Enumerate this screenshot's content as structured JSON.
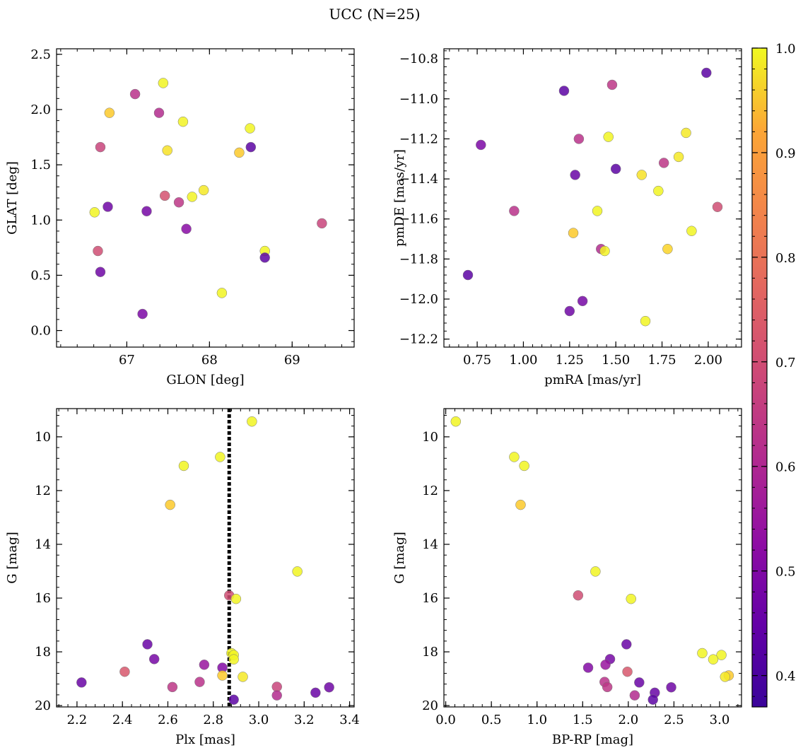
{
  "figure": {
    "title": "UCC (N=25)"
  },
  "colorbar": {
    "min": 0.37,
    "max": 1.0,
    "ticks": [
      0.4,
      0.5,
      0.6,
      0.7,
      0.8,
      0.9,
      1.0
    ],
    "tick_labels": [
      "0.4",
      "0.5",
      "0.6",
      "0.7",
      "0.8",
      "0.9",
      "1.0"
    ],
    "colormap": "plasma"
  },
  "chart_data": [
    {
      "type": "scatter",
      "id": "glon-glat",
      "title": "",
      "xlabel": "GLON [deg]",
      "ylabel": "GLAT [deg]",
      "xlim": [
        66.15,
        69.75
      ],
      "ylim": [
        -0.15,
        2.55
      ],
      "y_inverted": false,
      "xticks": [
        67,
        68,
        69
      ],
      "xtick_labels": [
        "67",
        "68",
        "69"
      ],
      "yticks": [
        0.0,
        0.5,
        1.0,
        1.5,
        2.0,
        2.5
      ],
      "ytick_labels": [
        "0.0",
        "0.5",
        "1.0",
        "1.5",
        "2.0",
        "2.5"
      ],
      "points": [
        {
          "x": 66.79,
          "y": 1.97,
          "c": 0.85
        },
        {
          "x": 67.44,
          "y": 2.24,
          "c": 0.98
        },
        {
          "x": 67.1,
          "y": 2.14,
          "c": 0.56
        },
        {
          "x": 67.39,
          "y": 1.97,
          "c": 0.55
        },
        {
          "x": 67.68,
          "y": 1.89,
          "c": 0.97
        },
        {
          "x": 66.68,
          "y": 1.66,
          "c": 0.6
        },
        {
          "x": 67.49,
          "y": 1.63,
          "c": 0.9
        },
        {
          "x": 68.49,
          "y": 1.83,
          "c": 0.98
        },
        {
          "x": 68.36,
          "y": 1.61,
          "c": 0.85
        },
        {
          "x": 68.5,
          "y": 1.66,
          "c": 0.4
        },
        {
          "x": 67.46,
          "y": 1.22,
          "c": 0.63
        },
        {
          "x": 67.63,
          "y": 1.16,
          "c": 0.57
        },
        {
          "x": 67.79,
          "y": 1.21,
          "c": 0.97
        },
        {
          "x": 67.93,
          "y": 1.27,
          "c": 0.92
        },
        {
          "x": 66.77,
          "y": 1.12,
          "c": 0.43
        },
        {
          "x": 67.24,
          "y": 1.08,
          "c": 0.44
        },
        {
          "x": 66.61,
          "y": 1.07,
          "c": 0.98
        },
        {
          "x": 67.72,
          "y": 0.92,
          "c": 0.47
        },
        {
          "x": 66.65,
          "y": 0.72,
          "c": 0.62
        },
        {
          "x": 66.68,
          "y": 0.53,
          "c": 0.43
        },
        {
          "x": 68.67,
          "y": 0.72,
          "c": 0.98
        },
        {
          "x": 68.67,
          "y": 0.66,
          "c": 0.4
        },
        {
          "x": 69.36,
          "y": 0.97,
          "c": 0.6
        },
        {
          "x": 68.15,
          "y": 0.34,
          "c": 0.98
        },
        {
          "x": 67.19,
          "y": 0.15,
          "c": 0.45
        }
      ]
    },
    {
      "type": "scatter",
      "id": "pmra-pmde",
      "title": "",
      "xlabel": "pmRA [mas/yr]",
      "ylabel": "pmDE [mas/yr]",
      "xlim": [
        0.57,
        2.18
      ],
      "ylim": [
        -12.24,
        -10.75
      ],
      "y_inverted": false,
      "xticks": [
        0.75,
        1.0,
        1.25,
        1.5,
        1.75,
        2.0
      ],
      "xtick_labels": [
        "0.75",
        "1.00",
        "1.25",
        "1.50",
        "1.75",
        "2.00"
      ],
      "yticks": [
        -12.2,
        -12.0,
        -11.8,
        -11.6,
        -11.4,
        -11.2,
        -11.0,
        -10.8
      ],
      "ytick_labels": [
        "−12.2",
        "−12.0",
        "−11.8",
        "−11.6",
        "−11.4",
        "−11.2",
        "−11.0",
        "−10.8"
      ],
      "points": [
        {
          "x": 1.99,
          "y": -10.87,
          "c": 0.4
        },
        {
          "x": 1.22,
          "y": -10.96,
          "c": 0.4
        },
        {
          "x": 1.48,
          "y": -10.93,
          "c": 0.57
        },
        {
          "x": 0.77,
          "y": -11.23,
          "c": 0.45
        },
        {
          "x": 1.3,
          "y": -11.2,
          "c": 0.56
        },
        {
          "x": 1.46,
          "y": -11.19,
          "c": 0.98
        },
        {
          "x": 1.88,
          "y": -11.17,
          "c": 0.92
        },
        {
          "x": 1.84,
          "y": -11.29,
          "c": 0.92
        },
        {
          "x": 1.76,
          "y": -11.32,
          "c": 0.57
        },
        {
          "x": 1.28,
          "y": -11.38,
          "c": 0.42
        },
        {
          "x": 1.5,
          "y": -11.35,
          "c": 0.4
        },
        {
          "x": 1.64,
          "y": -11.38,
          "c": 0.9
        },
        {
          "x": 1.73,
          "y": -11.46,
          "c": 0.98
        },
        {
          "x": 2.05,
          "y": -11.54,
          "c": 0.62
        },
        {
          "x": 0.95,
          "y": -11.56,
          "c": 0.56
        },
        {
          "x": 1.4,
          "y": -11.56,
          "c": 0.98
        },
        {
          "x": 1.91,
          "y": -11.66,
          "c": 0.98
        },
        {
          "x": 1.27,
          "y": -11.67,
          "c": 0.85
        },
        {
          "x": 1.78,
          "y": -11.75,
          "c": 0.87
        },
        {
          "x": 1.42,
          "y": -11.75,
          "c": 0.55
        },
        {
          "x": 1.44,
          "y": -11.76,
          "c": 0.97
        },
        {
          "x": 0.7,
          "y": -11.88,
          "c": 0.4
        },
        {
          "x": 1.32,
          "y": -12.01,
          "c": 0.44
        },
        {
          "x": 1.25,
          "y": -12.06,
          "c": 0.43
        },
        {
          "x": 1.66,
          "y": -12.11,
          "c": 0.98
        }
      ]
    },
    {
      "type": "scatter",
      "id": "plx-g",
      "title": "",
      "xlabel": "Plx [mas]",
      "ylabel": "G [mag]",
      "xlim": [
        2.11,
        3.42
      ],
      "ylim": [
        8.95,
        20.05
      ],
      "y_inverted": true,
      "xticks": [
        2.2,
        2.4,
        2.6,
        2.8,
        3.0,
        3.2,
        3.4
      ],
      "xtick_labels": [
        "2.2",
        "2.4",
        "2.6",
        "2.8",
        "3.0",
        "3.2",
        "3.4"
      ],
      "yticks": [
        10,
        12,
        14,
        16,
        18,
        20
      ],
      "ytick_labels": [
        "10",
        "12",
        "14",
        "16",
        "18",
        "20"
      ],
      "vline": {
        "x": 2.87,
        "style": "dotted"
      },
      "points": [
        {
          "x": 2.97,
          "y": 9.43,
          "c": 0.98
        },
        {
          "x": 2.83,
          "y": 10.75,
          "c": 0.98
        },
        {
          "x": 2.67,
          "y": 11.08,
          "c": 0.98
        },
        {
          "x": 2.61,
          "y": 12.53,
          "c": 0.85
        },
        {
          "x": 3.17,
          "y": 15.01,
          "c": 0.98
        },
        {
          "x": 2.87,
          "y": 15.9,
          "c": 0.62
        },
        {
          "x": 2.9,
          "y": 16.03,
          "c": 0.98
        },
        {
          "x": 2.51,
          "y": 17.72,
          "c": 0.42
        },
        {
          "x": 2.88,
          "y": 18.05,
          "c": 0.98
        },
        {
          "x": 2.89,
          "y": 18.12,
          "c": 0.98
        },
        {
          "x": 2.89,
          "y": 18.28,
          "c": 0.98
        },
        {
          "x": 2.54,
          "y": 18.27,
          "c": 0.44
        },
        {
          "x": 2.76,
          "y": 18.48,
          "c": 0.5
        },
        {
          "x": 2.84,
          "y": 18.59,
          "c": 0.46
        },
        {
          "x": 2.41,
          "y": 18.74,
          "c": 0.64
        },
        {
          "x": 2.84,
          "y": 18.88,
          "c": 0.85
        },
        {
          "x": 2.93,
          "y": 18.93,
          "c": 0.92
        },
        {
          "x": 2.22,
          "y": 19.14,
          "c": 0.42
        },
        {
          "x": 2.74,
          "y": 19.12,
          "c": 0.56
        },
        {
          "x": 2.62,
          "y": 19.31,
          "c": 0.57
        },
        {
          "x": 3.08,
          "y": 19.3,
          "c": 0.6
        },
        {
          "x": 3.31,
          "y": 19.32,
          "c": 0.43
        },
        {
          "x": 3.25,
          "y": 19.52,
          "c": 0.42
        },
        {
          "x": 3.08,
          "y": 19.62,
          "c": 0.55
        },
        {
          "x": 2.89,
          "y": 19.78,
          "c": 0.4
        }
      ]
    },
    {
      "type": "scatter",
      "id": "bprp-g",
      "title": "",
      "xlabel": "BP-RP [mag]",
      "ylabel": "G [mag]",
      "xlim": [
        -0.02,
        3.24
      ],
      "ylim": [
        8.95,
        20.05
      ],
      "y_inverted": true,
      "xticks": [
        0.0,
        0.5,
        1.0,
        1.5,
        2.0,
        2.5,
        3.0
      ],
      "xtick_labels": [
        "0.0",
        "0.5",
        "1.0",
        "1.5",
        "2.0",
        "2.5",
        "3.0"
      ],
      "yticks": [
        10,
        12,
        14,
        16,
        18,
        20
      ],
      "ytick_labels": [
        "10",
        "12",
        "14",
        "16",
        "18",
        "20"
      ],
      "points": [
        {
          "x": 0.11,
          "y": 9.43,
          "c": 0.98
        },
        {
          "x": 0.75,
          "y": 10.75,
          "c": 0.98
        },
        {
          "x": 0.86,
          "y": 11.08,
          "c": 0.98
        },
        {
          "x": 0.82,
          "y": 12.53,
          "c": 0.85
        },
        {
          "x": 1.64,
          "y": 15.01,
          "c": 0.98
        },
        {
          "x": 1.45,
          "y": 15.9,
          "c": 0.62
        },
        {
          "x": 2.03,
          "y": 16.03,
          "c": 0.98
        },
        {
          "x": 1.98,
          "y": 17.72,
          "c": 0.42
        },
        {
          "x": 2.81,
          "y": 18.05,
          "c": 0.98
        },
        {
          "x": 3.02,
          "y": 18.12,
          "c": 0.98
        },
        {
          "x": 2.93,
          "y": 18.28,
          "c": 0.98
        },
        {
          "x": 1.8,
          "y": 18.27,
          "c": 0.44
        },
        {
          "x": 1.75,
          "y": 18.48,
          "c": 0.5
        },
        {
          "x": 1.56,
          "y": 18.59,
          "c": 0.46
        },
        {
          "x": 1.99,
          "y": 18.74,
          "c": 0.64
        },
        {
          "x": 3.1,
          "y": 18.88,
          "c": 0.85
        },
        {
          "x": 3.06,
          "y": 18.93,
          "c": 0.92
        },
        {
          "x": 2.12,
          "y": 19.14,
          "c": 0.42
        },
        {
          "x": 1.74,
          "y": 19.12,
          "c": 0.56
        },
        {
          "x": 1.77,
          "y": 19.31,
          "c": 0.57
        },
        {
          "x": 2.47,
          "y": 19.32,
          "c": 0.43
        },
        {
          "x": 2.29,
          "y": 19.52,
          "c": 0.42
        },
        {
          "x": 2.07,
          "y": 19.62,
          "c": 0.55
        },
        {
          "x": 2.27,
          "y": 19.78,
          "c": 0.4
        }
      ]
    }
  ]
}
